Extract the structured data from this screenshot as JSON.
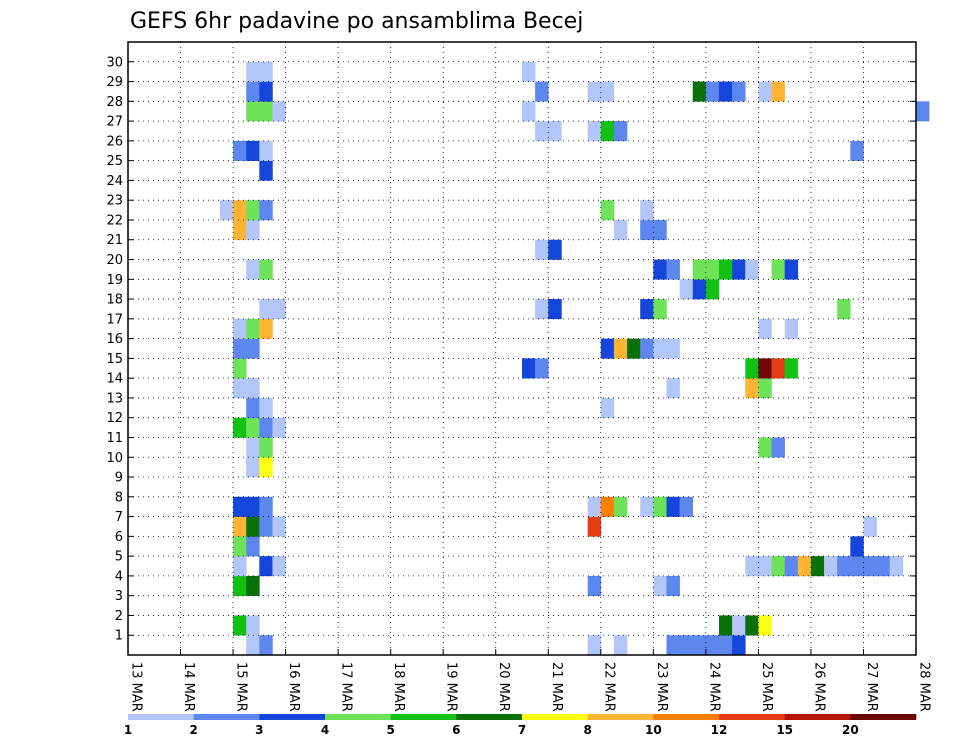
{
  "chart_data": {
    "type": "heatmap",
    "title": "GEFS 6hr padavine po ansamblima Becej",
    "y_categories": [
      "1",
      "2",
      "3",
      "4",
      "5",
      "6",
      "7",
      "8",
      "9",
      "10",
      "11",
      "12",
      "13",
      "14",
      "15",
      "16",
      "17",
      "18",
      "19",
      "20",
      "21",
      "22",
      "23",
      "24",
      "25",
      "26",
      "27",
      "28",
      "29",
      "30"
    ],
    "y_extra_row": "0",
    "x_tick_labels": [
      "13 MAR",
      "14 MAR",
      "15 MAR",
      "16 MAR",
      "17 MAR",
      "18 MAR",
      "19 MAR",
      "20 MAR",
      "21 MAR",
      "22 MAR",
      "23 MAR",
      "24 MAR",
      "25 MAR",
      "26 MAR",
      "27 MAR",
      "28 MAR"
    ],
    "x_step": "6hr",
    "grid": true,
    "colorbar": {
      "labels": [
        "1",
        "2",
        "3",
        "4",
        "5",
        "6",
        "7",
        "8",
        "10",
        "12",
        "15",
        "20"
      ],
      "colors": [
        "#b3c6fa",
        "#5d87ef",
        "#1446dc",
        "#6ee35a",
        "#13c113",
        "#0a700a",
        "#ffff14",
        "#ffb433",
        "#ff7f00",
        "#e63c12",
        "#b41409",
        "#6e0505"
      ],
      "bin_count": 12
    },
    "cells": [
      {
        "m": 0,
        "s": 9,
        "v": 1.5
      },
      {
        "m": 0,
        "s": 10,
        "v": 2.5
      },
      {
        "m": 0,
        "s": 35,
        "v": 1.5
      },
      {
        "m": 0,
        "s": 37,
        "v": 1.5
      },
      {
        "m": 0,
        "s": 41,
        "v": 2.5
      },
      {
        "m": 0,
        "s": 42,
        "v": 2.5
      },
      {
        "m": 0,
        "s": 43,
        "v": 2.5
      },
      {
        "m": 0,
        "s": 44,
        "v": 2.5
      },
      {
        "m": 0,
        "s": 45,
        "v": 2.5
      },
      {
        "m": 0,
        "s": 46,
        "v": 3.5
      },
      {
        "m": 1,
        "s": 8,
        "v": 5.5
      },
      {
        "m": 1,
        "s": 9,
        "v": 1.5
      },
      {
        "m": 1,
        "s": 45,
        "v": 6.5
      },
      {
        "m": 1,
        "s": 46,
        "v": 1.5
      },
      {
        "m": 1,
        "s": 47,
        "v": 6.5
      },
      {
        "m": 1,
        "s": 48,
        "v": 7.5
      },
      {
        "m": 3,
        "s": 8,
        "v": 5.5
      },
      {
        "m": 3,
        "s": 9,
        "v": 6.5
      },
      {
        "m": 3,
        "s": 35,
        "v": 2.5
      },
      {
        "m": 3,
        "s": 40,
        "v": 1.5
      },
      {
        "m": 3,
        "s": 41,
        "v": 2.5
      },
      {
        "m": 4,
        "s": 8,
        "v": 1.5
      },
      {
        "m": 4,
        "s": 10,
        "v": 3.5
      },
      {
        "m": 4,
        "s": 11,
        "v": 1.5
      },
      {
        "m": 4,
        "s": 47,
        "v": 1.5
      },
      {
        "m": 4,
        "s": 48,
        "v": 1.5
      },
      {
        "m": 4,
        "s": 49,
        "v": 4.5
      },
      {
        "m": 4,
        "s": 50,
        "v": 2.5
      },
      {
        "m": 4,
        "s": 51,
        "v": 8.5
      },
      {
        "m": 4,
        "s": 52,
        "v": 6.5
      },
      {
        "m": 4,
        "s": 53,
        "v": 1.5
      },
      {
        "m": 4,
        "s": 54,
        "v": 2.5
      },
      {
        "m": 4,
        "s": 55,
        "v": 2.5
      },
      {
        "m": 4,
        "s": 56,
        "v": 2.5
      },
      {
        "m": 4,
        "s": 57,
        "v": 2.5
      },
      {
        "m": 4,
        "s": 58,
        "v": 1.5
      },
      {
        "m": 5,
        "s": 8,
        "v": 4.5
      },
      {
        "m": 5,
        "s": 9,
        "v": 2.5
      },
      {
        "m": 5,
        "s": 55,
        "v": 3.5
      },
      {
        "m": 6,
        "s": 8,
        "v": 8.5
      },
      {
        "m": 6,
        "s": 9,
        "v": 6.5
      },
      {
        "m": 6,
        "s": 10,
        "v": 2.5
      },
      {
        "m": 6,
        "s": 11,
        "v": 1.5
      },
      {
        "m": 6,
        "s": 35,
        "v": 13
      },
      {
        "m": 6,
        "s": 56,
        "v": 1.5
      },
      {
        "m": 7,
        "s": 8,
        "v": 3.5
      },
      {
        "m": 7,
        "s": 9,
        "v": 3.5
      },
      {
        "m": 7,
        "s": 10,
        "v": 2.5
      },
      {
        "m": 7,
        "s": 35,
        "v": 1.5
      },
      {
        "m": 7,
        "s": 36,
        "v": 11
      },
      {
        "m": 7,
        "s": 37,
        "v": 4.5
      },
      {
        "m": 7,
        "s": 39,
        "v": 1.5
      },
      {
        "m": 7,
        "s": 40,
        "v": 4.5
      },
      {
        "m": 7,
        "s": 41,
        "v": 3.5
      },
      {
        "m": 7,
        "s": 42,
        "v": 2.5
      },
      {
        "m": 9,
        "s": 9,
        "v": 1.5
      },
      {
        "m": 9,
        "s": 10,
        "v": 7.5
      },
      {
        "m": 10,
        "s": 9,
        "v": 1.5
      },
      {
        "m": 10,
        "s": 10,
        "v": 4.5
      },
      {
        "m": 10,
        "s": 48,
        "v": 4.5
      },
      {
        "m": 10,
        "s": 49,
        "v": 2.5
      },
      {
        "m": 11,
        "s": 8,
        "v": 5.5
      },
      {
        "m": 11,
        "s": 9,
        "v": 4.5
      },
      {
        "m": 11,
        "s": 10,
        "v": 2.5
      },
      {
        "m": 11,
        "s": 11,
        "v": 1.5
      },
      {
        "m": 12,
        "s": 9,
        "v": 2.5
      },
      {
        "m": 12,
        "s": 10,
        "v": 1.5
      },
      {
        "m": 12,
        "s": 36,
        "v": 1.5
      },
      {
        "m": 13,
        "s": 8,
        "v": 1.5
      },
      {
        "m": 13,
        "s": 9,
        "v": 1.5
      },
      {
        "m": 13,
        "s": 41,
        "v": 1.5
      },
      {
        "m": 13,
        "s": 47,
        "v": 8.5
      },
      {
        "m": 13,
        "s": 48,
        "v": 4.5
      },
      {
        "m": 14,
        "s": 8,
        "v": 4.5
      },
      {
        "m": 14,
        "s": 30,
        "v": 3.5
      },
      {
        "m": 14,
        "s": 31,
        "v": 2.5
      },
      {
        "m": 14,
        "s": 47,
        "v": 5.5
      },
      {
        "m": 14,
        "s": 48,
        "v": 22
      },
      {
        "m": 14,
        "s": 49,
        "v": 13
      },
      {
        "m": 14,
        "s": 50,
        "v": 5.5
      },
      {
        "m": 15,
        "s": 8,
        "v": 2.5
      },
      {
        "m": 15,
        "s": 9,
        "v": 2.5
      },
      {
        "m": 15,
        "s": 36,
        "v": 3.5
      },
      {
        "m": 15,
        "s": 37,
        "v": 8.5
      },
      {
        "m": 15,
        "s": 38,
        "v": 6.5
      },
      {
        "m": 15,
        "s": 39,
        "v": 2.5
      },
      {
        "m": 15,
        "s": 40,
        "v": 1.5
      },
      {
        "m": 15,
        "s": 41,
        "v": 1.5
      },
      {
        "m": 16,
        "s": 8,
        "v": 1.5
      },
      {
        "m": 16,
        "s": 9,
        "v": 4.5
      },
      {
        "m": 16,
        "s": 10,
        "v": 8.5
      },
      {
        "m": 16,
        "s": 48,
        "v": 1.5
      },
      {
        "m": 16,
        "s": 50,
        "v": 1.5
      },
      {
        "m": 17,
        "s": 10,
        "v": 1.5
      },
      {
        "m": 17,
        "s": 11,
        "v": 1.5
      },
      {
        "m": 17,
        "s": 31,
        "v": 1.5
      },
      {
        "m": 17,
        "s": 32,
        "v": 3.5
      },
      {
        "m": 17,
        "s": 39,
        "v": 3.5
      },
      {
        "m": 17,
        "s": 40,
        "v": 4.5
      },
      {
        "m": 17,
        "s": 54,
        "v": 4.5
      },
      {
        "m": 18,
        "s": 42,
        "v": 1.5
      },
      {
        "m": 18,
        "s": 43,
        "v": 3.5
      },
      {
        "m": 18,
        "s": 44,
        "v": 5.5
      },
      {
        "m": 19,
        "s": 9,
        "v": 1.5
      },
      {
        "m": 19,
        "s": 10,
        "v": 4.5
      },
      {
        "m": 19,
        "s": 40,
        "v": 3.5
      },
      {
        "m": 19,
        "s": 41,
        "v": 2.5
      },
      {
        "m": 19,
        "s": 43,
        "v": 4.5
      },
      {
        "m": 19,
        "s": 44,
        "v": 4.5
      },
      {
        "m": 19,
        "s": 45,
        "v": 5.5
      },
      {
        "m": 19,
        "s": 46,
        "v": 3.5
      },
      {
        "m": 19,
        "s": 47,
        "v": 1.5
      },
      {
        "m": 19,
        "s": 49,
        "v": 4.5
      },
      {
        "m": 19,
        "s": 50,
        "v": 3.5
      },
      {
        "m": 20,
        "s": 31,
        "v": 1.5
      },
      {
        "m": 20,
        "s": 32,
        "v": 3.5
      },
      {
        "m": 21,
        "s": 8,
        "v": 8.5
      },
      {
        "m": 21,
        "s": 9,
        "v": 1.5
      },
      {
        "m": 21,
        "s": 37,
        "v": 1.5
      },
      {
        "m": 21,
        "s": 39,
        "v": 2.5
      },
      {
        "m": 21,
        "s": 40,
        "v": 2.5
      },
      {
        "m": 22,
        "s": 7,
        "v": 1.5
      },
      {
        "m": 22,
        "s": 8,
        "v": 8.5
      },
      {
        "m": 22,
        "s": 9,
        "v": 4.5
      },
      {
        "m": 22,
        "s": 10,
        "v": 2.5
      },
      {
        "m": 22,
        "s": 36,
        "v": 4.5
      },
      {
        "m": 22,
        "s": 39,
        "v": 1.5
      },
      {
        "m": 24,
        "s": 10,
        "v": 3.5
      },
      {
        "m": 25,
        "s": 8,
        "v": 2.5
      },
      {
        "m": 25,
        "s": 9,
        "v": 3.5
      },
      {
        "m": 25,
        "s": 10,
        "v": 1.5
      },
      {
        "m": 25,
        "s": 55,
        "v": 2.5
      },
      {
        "m": 26,
        "s": 31,
        "v": 1.5
      },
      {
        "m": 26,
        "s": 32,
        "v": 1.5
      },
      {
        "m": 26,
        "s": 35,
        "v": 1.5
      },
      {
        "m": 26,
        "s": 36,
        "v": 5.5
      },
      {
        "m": 26,
        "s": 37,
        "v": 2.5
      },
      {
        "m": 27,
        "s": 9,
        "v": 4.5
      },
      {
        "m": 27,
        "s": 10,
        "v": 4.5
      },
      {
        "m": 27,
        "s": 11,
        "v": 1.5
      },
      {
        "m": 27,
        "s": 30,
        "v": 1.5
      },
      {
        "m": 27,
        "s": 60,
        "v": 2.5
      },
      {
        "m": 28,
        "s": 9,
        "v": 2.5
      },
      {
        "m": 28,
        "s": 10,
        "v": 3.5
      },
      {
        "m": 28,
        "s": 31,
        "v": 2.5
      },
      {
        "m": 28,
        "s": 35,
        "v": 1.5
      },
      {
        "m": 28,
        "s": 36,
        "v": 1.5
      },
      {
        "m": 28,
        "s": 43,
        "v": 6.5
      },
      {
        "m": 28,
        "s": 44,
        "v": 2.5
      },
      {
        "m": 28,
        "s": 45,
        "v": 3.5
      },
      {
        "m": 28,
        "s": 46,
        "v": 2.5
      },
      {
        "m": 28,
        "s": 48,
        "v": 1.5
      },
      {
        "m": 28,
        "s": 49,
        "v": 8.5
      },
      {
        "m": 29,
        "s": 9,
        "v": 1.5
      },
      {
        "m": 29,
        "s": 10,
        "v": 1.5
      },
      {
        "m": 29,
        "s": 30,
        "v": 1.5
      }
    ]
  }
}
